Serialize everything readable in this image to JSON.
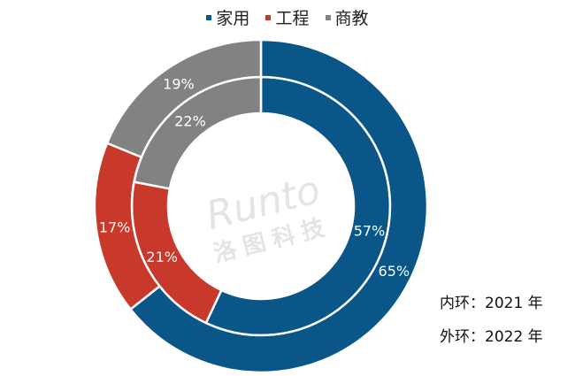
{
  "chart_data": {
    "type": "pie",
    "subtype": "double-donut",
    "categories": [
      "家用",
      "工程",
      "商教"
    ],
    "colors": [
      "#0a5689",
      "#c9392b",
      "#828282"
    ],
    "series": [
      {
        "name": "内环：2021 年",
        "ring": "inner",
        "values": [
          57,
          21,
          22
        ],
        "labels": [
          "57%",
          "21%",
          "22%"
        ]
      },
      {
        "name": "外环：2022 年",
        "ring": "outer",
        "values": [
          65,
          17,
          19
        ],
        "labels": [
          "65%",
          "17%",
          "19%"
        ]
      }
    ],
    "legend_placement": "top",
    "annotations": [
      "内环：2021 年",
      "外环：2022 年"
    ],
    "watermark": {
      "text1": "Runto",
      "text2": "洛图科技"
    }
  }
}
